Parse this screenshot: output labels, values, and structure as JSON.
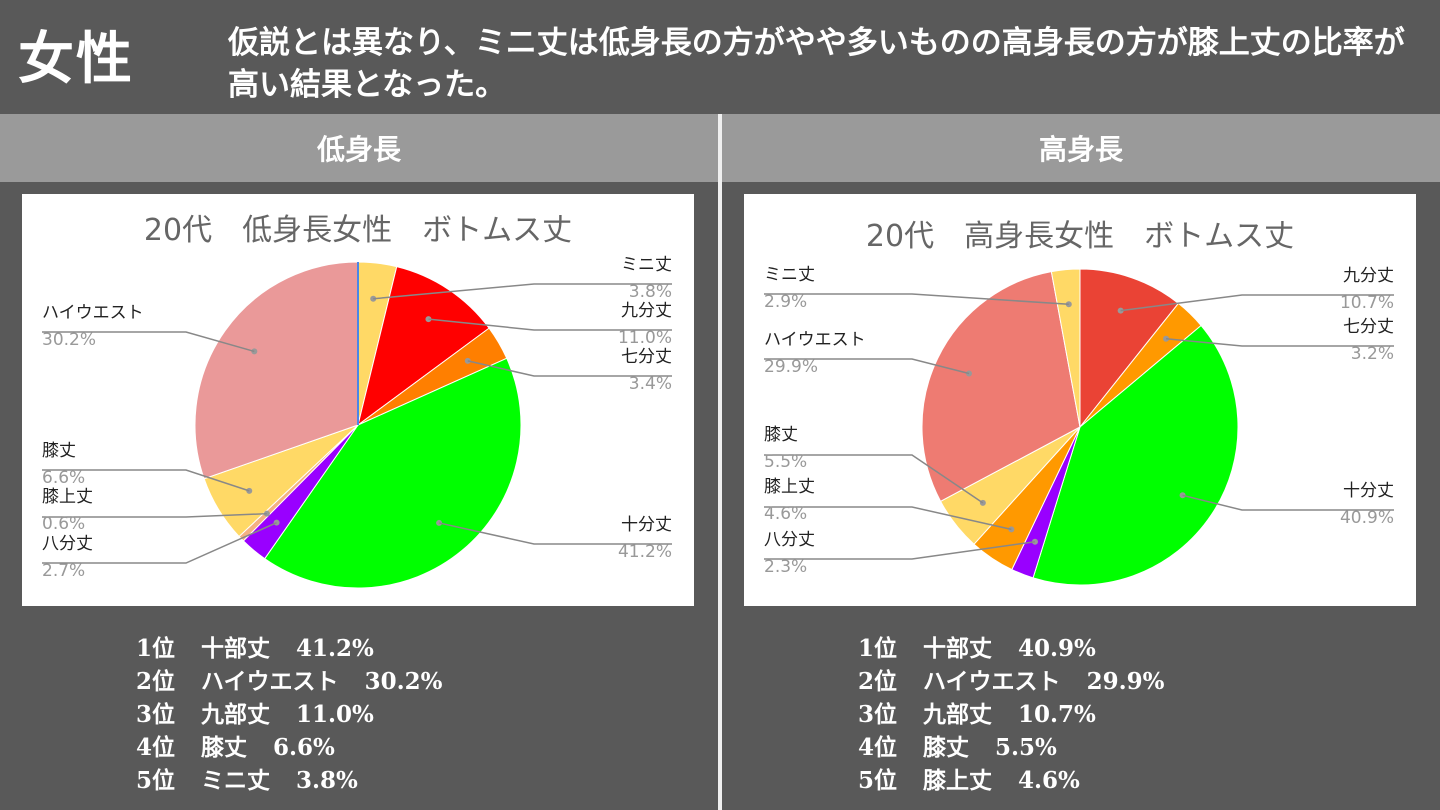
{
  "header": {
    "title": "女性",
    "description": "仮説とは異なり、ミニ丈は低身長の方がやや多いものの高身長の方が膝上丈の比率が高い結果となった。"
  },
  "columns": {
    "left_label": "低身長",
    "right_label": "高身長"
  },
  "chart_data": [
    {
      "type": "pie",
      "title": "20代　低身長女性　ボトムス丈",
      "categories": [
        "ミニ丈",
        "九分丈",
        "七分丈",
        "十分丈",
        "八分丈",
        "膝上丈",
        "膝丈",
        "ハイウエスト"
      ],
      "values": [
        3.8,
        11.0,
        3.4,
        41.2,
        2.7,
        0.6,
        6.6,
        30.2
      ],
      "labels": [
        "3.8%",
        "11.0%",
        "3.4%",
        "41.2%",
        "2.7%",
        "0.6%",
        "6.6%",
        "30.2%"
      ],
      "colors": [
        "#ffd966",
        "#ff0000",
        "#ff7f00",
        "#00ff00",
        "#9900ff",
        "#f4b183",
        "#ffd966",
        "#ea9999"
      ],
      "start_sliver_color": "#4a86e8"
    },
    {
      "type": "pie",
      "title": "20代　高身長女性　ボトムス丈",
      "categories": [
        "九分丈",
        "七分丈",
        "十分丈",
        "八分丈",
        "膝上丈",
        "膝丈",
        "ハイウエスト",
        "ミニ丈"
      ],
      "values": [
        10.7,
        3.2,
        40.9,
        2.3,
        4.6,
        5.5,
        29.9,
        2.9
      ],
      "labels": [
        "10.7%",
        "3.2%",
        "40.9%",
        "2.3%",
        "4.6%",
        "5.5%",
        "29.9%",
        "2.9%"
      ],
      "colors": [
        "#ea4335",
        "#ff9900",
        "#00ff00",
        "#9900ff",
        "#ff9900",
        "#ffd966",
        "#ee7b72",
        "#ffd966"
      ]
    }
  ],
  "rankings": {
    "left": [
      [
        "1位",
        "十部丈",
        "41.2%"
      ],
      [
        "2位",
        "ハイウエスト",
        "30.2%"
      ],
      [
        "3位",
        "九部丈",
        "11.0%"
      ],
      [
        "4位",
        "膝丈",
        "6.6%"
      ],
      [
        "5位",
        "ミニ丈",
        "3.8%"
      ]
    ],
    "right": [
      [
        "1位",
        "十部丈",
        "40.9%"
      ],
      [
        "2位",
        "ハイウエスト",
        "29.9%"
      ],
      [
        "3位",
        "九部丈",
        "10.7%"
      ],
      [
        "4位",
        "膝丈",
        "5.5%"
      ],
      [
        "5位",
        "膝上丈",
        "4.6%"
      ]
    ]
  }
}
